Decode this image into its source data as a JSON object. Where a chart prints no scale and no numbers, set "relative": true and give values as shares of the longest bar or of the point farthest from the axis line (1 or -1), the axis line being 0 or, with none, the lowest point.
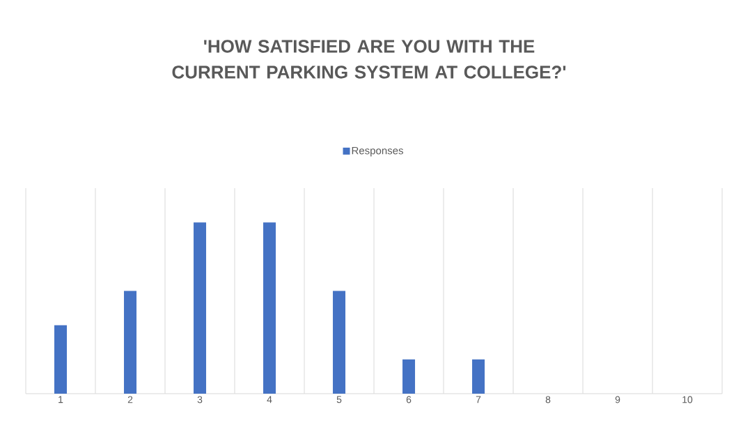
{
  "chart_data": {
    "type": "bar",
    "title": "'HOW SATISFIED ARE YOU WITH THE CURRENT PARKING SYSTEM AT COLLEGE?'",
    "categories": [
      "1",
      "2",
      "3",
      "4",
      "5",
      "6",
      "7",
      "8",
      "9",
      "10"
    ],
    "series": [
      {
        "name": "Responses",
        "color": "#4472c4",
        "values": [
          0.4,
          0.6,
          1,
          1,
          0.6,
          0.2,
          0.2,
          0,
          0,
          0
        ]
      }
    ],
    "relative": true,
    "grid": "x",
    "legend": "top"
  }
}
